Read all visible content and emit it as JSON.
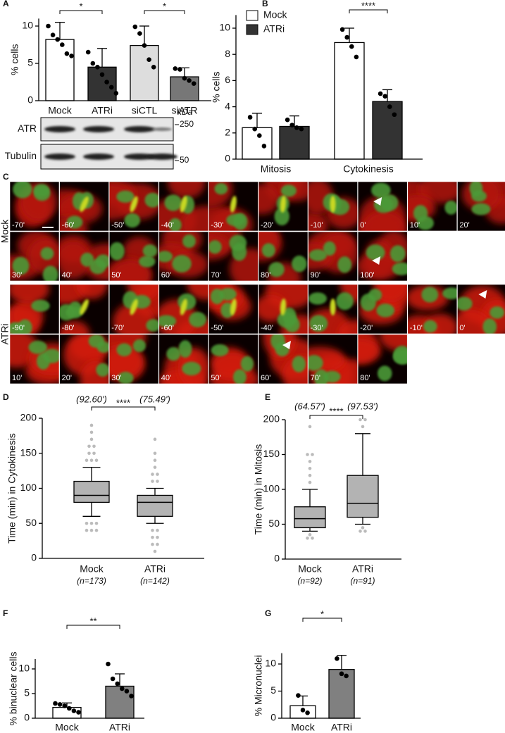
{
  "chart_data": [
    {
      "type": "bar",
      "panel": "A",
      "ylabel": "% cells",
      "categories": [
        "Mock",
        "ATRi",
        "siCTL",
        "siATR"
      ],
      "values": [
        8.2,
        4.5,
        7.4,
        3.2
      ],
      "errors": [
        2.3,
        2.5,
        2.6,
        1.2
      ],
      "colors": [
        "#ffffff",
        "#333333",
        "#dddddd",
        "#777777"
      ],
      "points": [
        [
          10.0,
          8.8,
          8.2,
          7.5,
          6.3,
          6.0
        ],
        [
          6.5,
          5.0,
          4.5,
          3.5,
          2.5,
          1.8,
          1.0
        ],
        [
          9.9,
          9.0,
          7.4,
          5.5,
          4.5
        ],
        [
          4.3,
          4.2,
          3.0,
          2.7,
          2.3
        ]
      ],
      "ylim": [
        0,
        11
      ],
      "yticks": [
        0,
        5,
        10
      ],
      "annotations": [
        "*",
        "*"
      ]
    },
    {
      "type": "bar",
      "panel": "B",
      "ylabel": "% cells",
      "categories": [
        "Mitosis",
        "Cytokinesis"
      ],
      "series": [
        {
          "name": "Mock",
          "color": "#ffffff",
          "values": [
            2.4,
            8.9
          ],
          "errors": [
            1.1,
            1.1
          ],
          "points": [
            [
              3.2,
              2.3,
              1.8,
              1.0
            ],
            [
              9.9,
              9.3,
              8.6,
              7.8
            ]
          ]
        },
        {
          "name": "ATRi",
          "color": "#333333",
          "values": [
            2.5,
            4.4
          ],
          "errors": [
            0.8,
            0.9
          ],
          "points": [
            [
              3.0,
              2.6,
              2.4,
              2.3
            ],
            [
              5.0,
              4.8,
              4.0,
              3.4
            ]
          ]
        }
      ],
      "ylim": [
        0,
        11
      ],
      "yticks": [
        0,
        2,
        4,
        6,
        8,
        10
      ],
      "legend": "top-left",
      "annotations": [
        "****"
      ]
    },
    {
      "type": "box",
      "panel": "D",
      "ylabel": "Time (min) in Cytokinesis",
      "categories": [
        "Mock",
        "ATRi"
      ],
      "color": "#b3b3b3",
      "outlier_color": "#bbbbbb",
      "boxes": [
        {
          "low": 60,
          "q1": 80,
          "median": 90,
          "q3": 110,
          "high": 130,
          "outliers": [
            140,
            140,
            140,
            150,
            150,
            160,
            160,
            170,
            180,
            190,
            50,
            50,
            50,
            40,
            40,
            40
          ]
        },
        {
          "low": 50,
          "q1": 60,
          "median": 80,
          "q3": 90,
          "high": 100,
          "outliers": [
            110,
            110,
            120,
            120,
            130,
            140,
            150,
            170,
            40,
            40,
            30,
            30,
            20,
            20,
            10
          ]
        }
      ],
      "mean_labels": [
        "(92.60')",
        "(75.49')"
      ],
      "n_labels": [
        "(n=173)",
        "(n=142)"
      ],
      "ylim": [
        0,
        200
      ],
      "yticks": [
        0,
        50,
        100,
        150,
        200
      ],
      "annotations": [
        "****"
      ]
    },
    {
      "type": "box",
      "panel": "E",
      "ylabel": "Time (min) in Mitosis",
      "categories": [
        "Mock",
        "ATRi"
      ],
      "color": "#b3b3b3",
      "outlier_color": "#bbbbbb",
      "boxes": [
        {
          "low": 40,
          "q1": 45,
          "median": 58,
          "q3": 75,
          "high": 100,
          "outliers": [
            110,
            120,
            130,
            140,
            150,
            150,
            190,
            35,
            30,
            30
          ]
        },
        {
          "low": 50,
          "q1": 60,
          "median": 80,
          "q3": 120,
          "high": 180,
          "outliers": [
            190,
            200,
            200,
            40,
            40,
            45
          ]
        }
      ],
      "mean_labels": [
        "(64.57')",
        "(97.53')"
      ],
      "n_labels": [
        "(n=92)",
        "(n=91)"
      ],
      "ylim": [
        0,
        200
      ],
      "yticks": [
        0,
        50,
        100,
        150,
        200
      ],
      "annotations": [
        "****"
      ]
    },
    {
      "type": "bar",
      "panel": "F",
      "ylabel": "% binuclear cells",
      "categories": [
        "Mock",
        "ATRi"
      ],
      "values": [
        2.2,
        6.5
      ],
      "errors": [
        0.9,
        2.5
      ],
      "colors": [
        "#ffffff",
        "#808080"
      ],
      "points": [
        [
          3.0,
          2.8,
          2.5,
          2.0,
          1.5,
          1.2
        ],
        [
          11.0,
          8.0,
          7.0,
          6.0,
          5.5,
          4.5
        ]
      ],
      "ylim": [
        0,
        12
      ],
      "yticks": [
        0,
        5,
        10
      ],
      "annotations": [
        "**"
      ]
    },
    {
      "type": "bar",
      "panel": "G",
      "ylabel": "% Micronuclei",
      "categories": [
        "Mock",
        "ATRi"
      ],
      "values": [
        2.3,
        9.0
      ],
      "errors": [
        1.8,
        2.6
      ],
      "colors": [
        "#ffffff",
        "#808080"
      ],
      "points": [
        [
          4.2,
          1.5,
          1.0
        ],
        [
          11.0,
          8.2,
          7.8
        ]
      ],
      "ylim": [
        0,
        12
      ],
      "yticks": [
        0,
        5,
        10
      ],
      "annotations": [
        "*"
      ]
    }
  ],
  "blot": {
    "unit": "kDa",
    "rows": [
      {
        "label": "ATR",
        "marker": "250"
      },
      {
        "label": "Tubulin",
        "marker": "50"
      }
    ]
  },
  "timelapse": {
    "panel": "C",
    "rows": [
      {
        "label": "Mock",
        "frames": [
          "-70'",
          "-60'",
          "-50'",
          "-40'",
          "-30'",
          "-20'",
          "-10'",
          "0'",
          "10'",
          "20'",
          "30'",
          "40'",
          "50'",
          "60'",
          "70'",
          "80'",
          "90'",
          "100'"
        ]
      },
      {
        "label": "ATRi",
        "frames": [
          "-90'",
          "-80'",
          "-70'",
          "-60'",
          "-50'",
          "-40'",
          "-30'",
          "-20'",
          "-10'",
          "0'",
          "10'",
          "20'",
          "30'",
          "40'",
          "50'",
          "60'",
          "70'",
          "80'"
        ]
      }
    ]
  }
}
